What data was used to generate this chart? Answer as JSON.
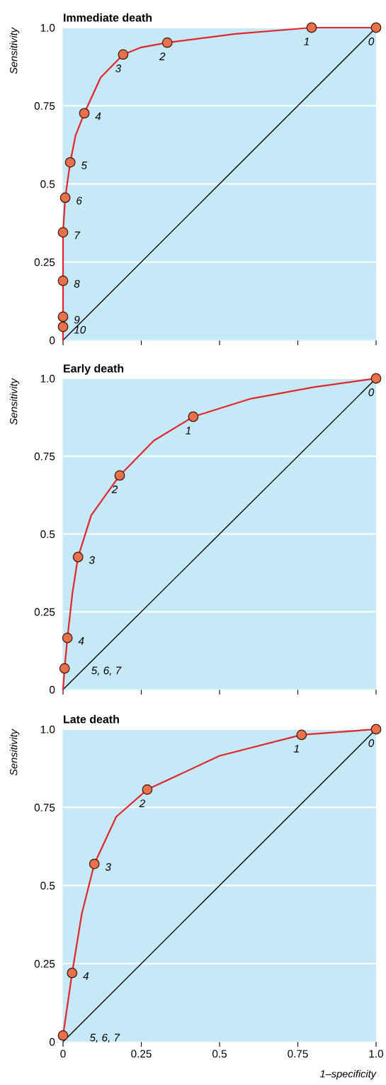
{
  "chart_data": [
    {
      "type": "line",
      "title": "Immediate death",
      "ylabel": "Sensitivity",
      "xlim": [
        0,
        1
      ],
      "ylim": [
        0,
        1
      ],
      "xticks": [
        {
          "value": 0,
          "label": null
        },
        {
          "value": 0.25,
          "label": null
        },
        {
          "value": 0.5,
          "label": null
        },
        {
          "value": 0.75,
          "label": null
        },
        {
          "value": 1.0,
          "label": null
        }
      ],
      "yticks": [
        {
          "value": 0,
          "label": "0"
        },
        {
          "value": 0.25,
          "label": "0.25"
        },
        {
          "value": 0.5,
          "label": "0.5"
        },
        {
          "value": 0.75,
          "label": "0.75"
        },
        {
          "value": 1.0,
          "label": "1.0"
        }
      ],
      "tick_labels": "y",
      "grid": "y",
      "series": [
        {
          "color": "#000000",
          "x": [
            0,
            1
          ],
          "values": [
            0,
            1
          ]
        },
        {
          "color": "#e3262b",
          "x": [
            0,
            0,
            0,
            0,
            0,
            0.007,
            0.023,
            0.04,
            0.068,
            0.12,
            0.192,
            0.25,
            0.333,
            0.55,
            0.794,
            1
          ],
          "values": [
            0,
            0.043,
            0.075,
            0.19,
            0.345,
            0.456,
            0.569,
            0.655,
            0.726,
            0.84,
            0.914,
            0.937,
            0.952,
            0.98,
            1.0,
            1.0
          ]
        },
        {
          "type": "scatter",
          "color": "#e8714c",
          "marker": "circle",
          "x": [
            0,
            0,
            0,
            0,
            0.007,
            0.023,
            0.068,
            0.192,
            0.333,
            0.794,
            1
          ],
          "values": [
            0.043,
            0.075,
            0.19,
            0.345,
            0.456,
            0.569,
            0.726,
            0.914,
            0.952,
            1.0,
            1.0
          ]
        }
      ],
      "annotations": [
        {
          "text": "10",
          "x": 0,
          "y": 0.043
        },
        {
          "text": "9",
          "x": 0,
          "y": 0.075
        },
        {
          "text": "8",
          "x": 0,
          "y": 0.19
        },
        {
          "text": "7",
          "x": 0,
          "y": 0.345
        },
        {
          "text": "6",
          "x": 0.007,
          "y": 0.456
        },
        {
          "text": "5",
          "x": 0.023,
          "y": 0.569
        },
        {
          "text": "4",
          "x": 0.068,
          "y": 0.726
        },
        {
          "text": "3",
          "x": 0.192,
          "y": 0.914
        },
        {
          "text": "2",
          "x": 0.333,
          "y": 0.952
        },
        {
          "text": "1",
          "x": 0.794,
          "y": 1.0
        },
        {
          "text": "0",
          "x": 1,
          "y": 1.0
        }
      ]
    },
    {
      "type": "line",
      "title": "Early death",
      "ylabel": "Sensitivity",
      "xlim": [
        0,
        1
      ],
      "ylim": [
        0,
        1
      ],
      "xticks": [
        {
          "value": 0,
          "label": null
        },
        {
          "value": 0.25,
          "label": null
        },
        {
          "value": 0.5,
          "label": null
        },
        {
          "value": 0.75,
          "label": null
        },
        {
          "value": 1.0,
          "label": null
        }
      ],
      "yticks": [
        {
          "value": 0,
          "label": "0"
        },
        {
          "value": 0.25,
          "label": "0.25"
        },
        {
          "value": 0.5,
          "label": "0.5"
        },
        {
          "value": 0.75,
          "label": "0.75"
        },
        {
          "value": 1.0,
          "label": "1.0"
        }
      ],
      "tick_labels": "y",
      "grid": "y",
      "series": [
        {
          "color": "#000000",
          "x": [
            0,
            1
          ],
          "values": [
            0,
            1
          ]
        },
        {
          "color": "#e3262b",
          "x": [
            0,
            0.005,
            0.014,
            0.03,
            0.048,
            0.09,
            0.181,
            0.29,
            0.416,
            0.6,
            0.8,
            1
          ],
          "values": [
            0,
            0.068,
            0.166,
            0.31,
            0.426,
            0.56,
            0.688,
            0.8,
            0.877,
            0.935,
            0.972,
            1.0
          ]
        },
        {
          "type": "scatter",
          "color": "#e8714c",
          "marker": "circle",
          "x": [
            0.005,
            0.014,
            0.048,
            0.181,
            0.416,
            1
          ],
          "values": [
            0.068,
            0.166,
            0.426,
            0.688,
            0.877,
            1.0
          ]
        }
      ],
      "annotations": [
        {
          "text": "5, 6, 7",
          "x": 0.005,
          "y": 0.068
        },
        {
          "text": "4",
          "x": 0.014,
          "y": 0.166
        },
        {
          "text": "3",
          "x": 0.048,
          "y": 0.426
        },
        {
          "text": "2",
          "x": 0.181,
          "y": 0.688
        },
        {
          "text": "1",
          "x": 0.416,
          "y": 0.877
        },
        {
          "text": "0",
          "x": 1,
          "y": 1.0
        }
      ]
    },
    {
      "type": "line",
      "title": "Late death",
      "ylabel": "Sensitivity",
      "xlabel": "1–specificity",
      "xlim": [
        0,
        1
      ],
      "ylim": [
        0,
        1
      ],
      "xticks": [
        {
          "value": 0,
          "label": "0"
        },
        {
          "value": 0.25,
          "label": "0.25"
        },
        {
          "value": 0.5,
          "label": "0.5"
        },
        {
          "value": 0.75,
          "label": "0.75"
        },
        {
          "value": 1.0,
          "label": "1.0"
        }
      ],
      "yticks": [
        {
          "value": 0,
          "label": "0"
        },
        {
          "value": 0.25,
          "label": "0.25"
        },
        {
          "value": 0.5,
          "label": "0.5"
        },
        {
          "value": 0.75,
          "label": "0.75"
        },
        {
          "value": 1.0,
          "label": "1.0"
        }
      ],
      "grid": "y",
      "series": [
        {
          "color": "#000000",
          "x": [
            0,
            1
          ],
          "values": [
            0,
            1
          ]
        },
        {
          "color": "#e3262b",
          "x": [
            0,
            0.029,
            0.06,
            0.1,
            0.17,
            0.269,
            0.5,
            0.762,
            1
          ],
          "values": [
            0.02,
            0.22,
            0.41,
            0.569,
            0.72,
            0.807,
            0.915,
            0.982,
            1.0
          ]
        },
        {
          "type": "scatter",
          "color": "#e8714c",
          "marker": "circle",
          "x": [
            0,
            0.029,
            0.1,
            0.269,
            0.762,
            1
          ],
          "values": [
            0.02,
            0.22,
            0.569,
            0.807,
            0.982,
            1.0
          ]
        }
      ],
      "annotations": [
        {
          "text": "5, 6, 7",
          "x": 0,
          "y": 0.02
        },
        {
          "text": "4",
          "x": 0.029,
          "y": 0.22
        },
        {
          "text": "3",
          "x": 0.1,
          "y": 0.569
        },
        {
          "text": "2",
          "x": 0.269,
          "y": 0.807
        },
        {
          "text": "1",
          "x": 0.762,
          "y": 0.982
        },
        {
          "text": "0",
          "x": 1,
          "y": 1.0
        }
      ]
    }
  ]
}
